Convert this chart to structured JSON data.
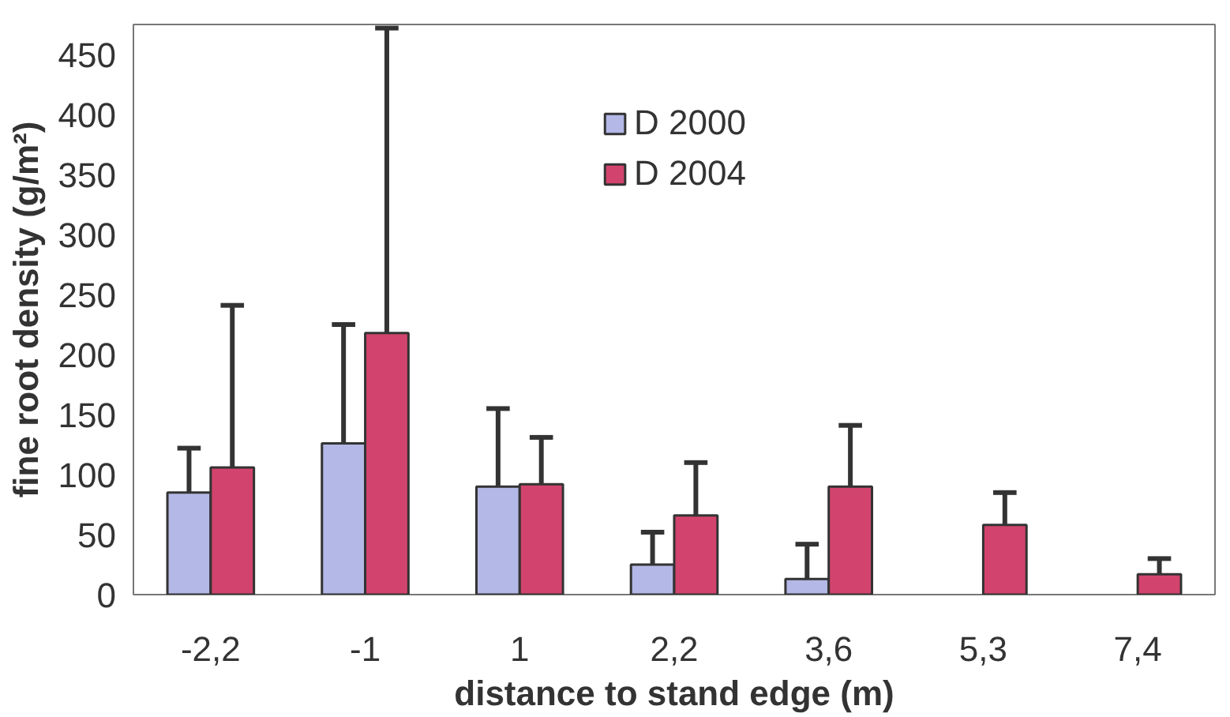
{
  "chart_data": {
    "type": "bar",
    "xlabel": "distance to stand edge (m)",
    "ylabel": "fine root density (g/m²)",
    "categories": [
      "-2,2",
      "-1",
      "1",
      "2,2",
      "3,6",
      "5,3",
      "7,4"
    ],
    "series": [
      {
        "name": "D 2000",
        "color": "#b4b8e6",
        "values": [
          85,
          126,
          90,
          25,
          13,
          null,
          null
        ],
        "errors": [
          [
            85,
            122
          ],
          [
            126,
            225
          ],
          [
            90,
            155
          ],
          [
            25,
            52
          ],
          [
            13,
            42
          ],
          null,
          null
        ]
      },
      {
        "name": "D 2004",
        "color": "#d2446e",
        "values": [
          106,
          218,
          92,
          66,
          90,
          58,
          17
        ],
        "errors": [
          [
            106,
            241
          ],
          [
            218,
            472
          ],
          [
            92,
            131
          ],
          [
            66,
            110
          ],
          [
            90,
            141
          ],
          [
            58,
            85
          ],
          [
            17,
            30
          ]
        ]
      }
    ],
    "ylim": [
      0,
      475
    ],
    "yticks": [
      0,
      50,
      100,
      150,
      200,
      250,
      300,
      350,
      400,
      450
    ],
    "grid": false,
    "legend": "top"
  }
}
